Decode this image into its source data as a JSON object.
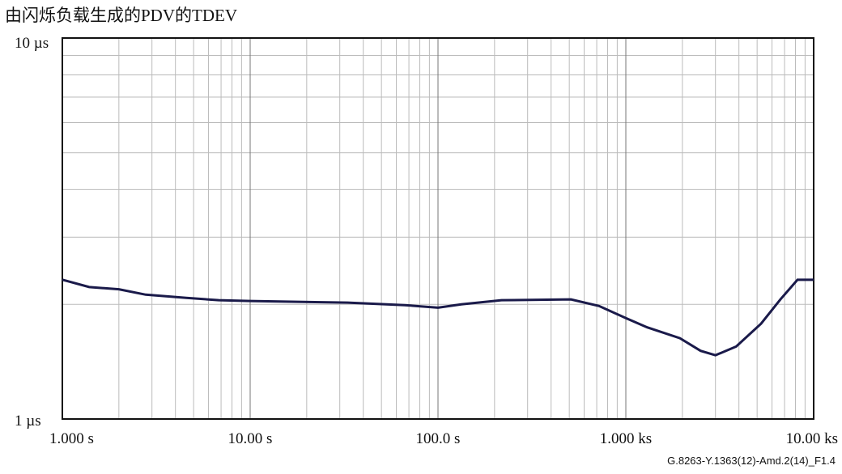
{
  "chart_data": {
    "type": "line",
    "title": "由闪烁负载生成的PDV的TDEV",
    "note": "G.8263-Y.1363(12)-Amd.2(14)_F1.4",
    "xscale": "log",
    "yscale": "log",
    "grid": true,
    "xlim": [
      1,
      10000
    ],
    "ylim": [
      1,
      10
    ],
    "xticks": [
      {
        "value": 1,
        "label": "1.000 s"
      },
      {
        "value": 10,
        "label": "10.00 s"
      },
      {
        "value": 100,
        "label": "100.0 s"
      },
      {
        "value": 1000,
        "label": "1.000 ks"
      },
      {
        "value": 10000,
        "label": "10.00 ks"
      }
    ],
    "yticks": [
      {
        "value": 1,
        "label": "1 µs"
      },
      {
        "value": 10,
        "label": "10 µs"
      }
    ],
    "xminorticks": [
      2,
      3,
      4,
      5,
      6,
      7,
      8,
      9,
      20,
      30,
      40,
      50,
      60,
      70,
      80,
      90,
      200,
      300,
      400,
      500,
      600,
      700,
      800,
      900,
      2000,
      3000,
      4000,
      5000,
      6000,
      7000,
      8000,
      9000
    ],
    "yminorticks": [
      2,
      3,
      4,
      5,
      6,
      7,
      8,
      9
    ],
    "x": [
      1,
      1.39,
      2.0,
      2.78,
      4.57,
      6.8,
      10,
      33,
      66.5,
      100,
      133,
      218,
      510,
      720,
      1000,
      1300,
      1940,
      2500,
      3000,
      3870,
      5250,
      6650,
      8200,
      10000
    ],
    "series": [
      {
        "color": "#1a1a4a",
        "values": [
          2.32,
          2.22,
          2.19,
          2.12,
          2.08,
          2.05,
          2.04,
          2.02,
          1.99,
          1.96,
          2.0,
          2.05,
          2.06,
          1.98,
          1.84,
          1.74,
          1.63,
          1.51,
          1.47,
          1.55,
          1.78,
          2.06,
          2.32,
          2.32
        ]
      }
    ]
  }
}
